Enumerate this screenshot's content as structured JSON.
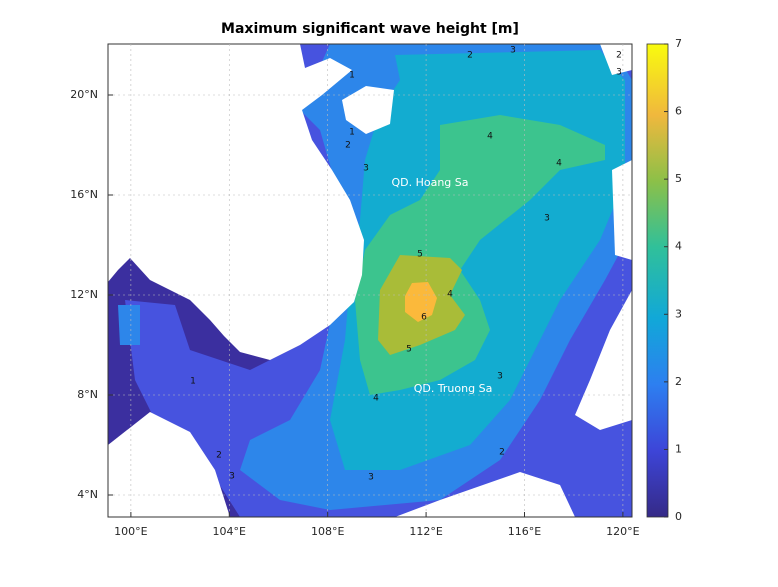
{
  "title": "Maximum significant wave height [m]",
  "map": {
    "xlim": [
      99.07,
      120.37
    ],
    "ylim": [
      3.12,
      22.04
    ],
    "xticks": [
      {
        "value": 100,
        "label": "100°E"
      },
      {
        "value": 104,
        "label": "104°E"
      },
      {
        "value": 108,
        "label": "108°E"
      },
      {
        "value": 112,
        "label": "112°E"
      },
      {
        "value": 116,
        "label": "116°E"
      },
      {
        "value": 120,
        "label": "120°E"
      }
    ],
    "yticks": [
      {
        "value": 4,
        "label": "4°N"
      },
      {
        "value": 8,
        "label": "8°N"
      },
      {
        "value": 12,
        "label": "12°N"
      },
      {
        "value": 16,
        "label": "16°N"
      },
      {
        "value": 20,
        "label": "20°N"
      }
    ],
    "grid": true,
    "place_labels": [
      "QD. Hoang Sa",
      "QD. Truong Sa"
    ],
    "contour_labels": [
      1,
      2,
      3,
      2,
      3,
      4,
      4,
      3,
      5,
      6,
      5,
      4,
      3,
      4,
      3,
      2,
      3,
      1,
      2,
      2,
      1,
      3
    ]
  },
  "colorbar": {
    "lim": [
      0,
      7
    ],
    "ticks": [
      0,
      1,
      2,
      3,
      4,
      5,
      6,
      7
    ]
  }
}
